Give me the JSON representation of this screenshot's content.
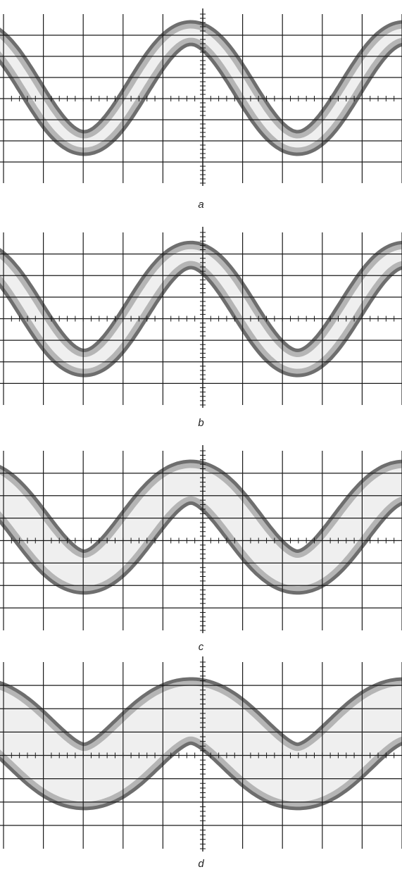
{
  "figure": {
    "background": "#ffffff",
    "trace_color": "#555555",
    "trace_core_color": "#f2f2f2",
    "grid_color": "#1a1a1a"
  },
  "chart_data": [
    {
      "type": "line",
      "label": "a",
      "grid": true,
      "grid_divisions": {
        "horizontal": 10,
        "vertical": 8
      },
      "series": [
        {
          "shape": "sine",
          "cycles_visible": 2.0,
          "amplitude_div": 2.6,
          "offset_div": 0.5,
          "noise_band_div": 0.9
        }
      ]
    },
    {
      "type": "line",
      "label": "b",
      "grid": true,
      "grid_divisions": {
        "horizontal": 10,
        "vertical": 8
      },
      "series": [
        {
          "shape": "sine",
          "cycles_visible": 2.0,
          "amplitude_div": 2.5,
          "offset_div": 0.45,
          "noise_band_div": 1.0
        }
      ]
    },
    {
      "type": "line",
      "label": "c",
      "grid": true,
      "grid_divisions": {
        "horizontal": 10,
        "vertical": 8
      },
      "series": [
        {
          "shape": "sine",
          "cycles_visible": 2.0,
          "amplitude_div": 2.0,
          "offset_div": 0.6,
          "noise_band_div": 1.7
        }
      ]
    },
    {
      "type": "line",
      "label": "d",
      "grid": true,
      "grid_divisions": {
        "horizontal": 10,
        "vertical": 8
      },
      "series": [
        {
          "shape": "sine",
          "cycles_visible": 2.0,
          "amplitude_div": 1.4,
          "offset_div": 0.5,
          "noise_band_div": 2.6
        }
      ]
    }
  ]
}
